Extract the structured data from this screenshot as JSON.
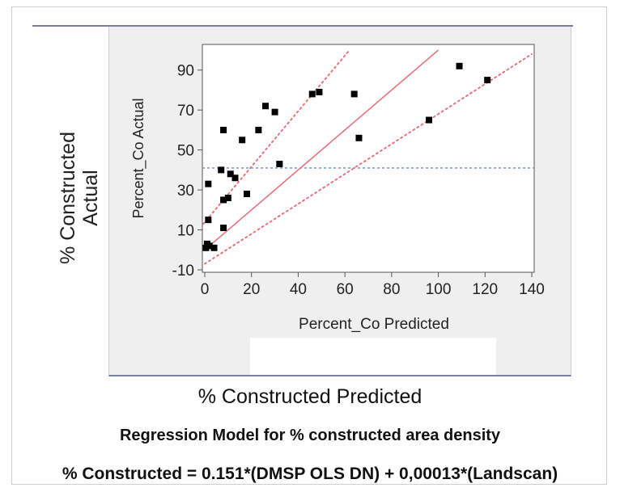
{
  "chart_data": {
    "type": "scatter",
    "title": "Regression Model for % constructed area density",
    "subtitle": "% Constructed = 0.151*(DMSP OLS DN) + 0,00013*(Landscan)",
    "outer_xlabel": "% Constructed Predicted",
    "outer_ylabel_line1": "% Constructed",
    "outer_ylabel_line2": "Actual",
    "xlabel": "Percent_Co Predicted",
    "ylabel": "Percent_Co Actual",
    "xlim": [
      0,
      140
    ],
    "ylim": [
      -10,
      100
    ],
    "xticks": [
      0,
      20,
      40,
      60,
      80,
      100,
      120,
      140
    ],
    "yticks": [
      -10,
      10,
      30,
      50,
      70,
      90
    ],
    "grid": false,
    "mean_line_y": 41,
    "fit_line": {
      "x": [
        0,
        100
      ],
      "y": [
        0,
        100
      ],
      "color": "#e8737f",
      "style": "solid"
    },
    "confidence_lines": [
      {
        "x": [
          -10,
          62
        ],
        "y": [
          0,
          100
        ],
        "color": "#e8737f",
        "style": "dotted"
      },
      {
        "x": [
          0,
          140
        ],
        "y": [
          -7,
          98
        ],
        "color": "#e8737f",
        "style": "dotted"
      }
    ],
    "mean_line_color": "#7f9be0",
    "point_color": "#000000",
    "points": [
      {
        "x": 0.5,
        "y": 1
      },
      {
        "x": 1,
        "y": 3
      },
      {
        "x": 2,
        "y": 2
      },
      {
        "x": 1.5,
        "y": 15
      },
      {
        "x": 1.5,
        "y": 33
      },
      {
        "x": 4,
        "y": 1
      },
      {
        "x": 8,
        "y": 11
      },
      {
        "x": 7,
        "y": 40
      },
      {
        "x": 8,
        "y": 25
      },
      {
        "x": 10,
        "y": 26
      },
      {
        "x": 11,
        "y": 38
      },
      {
        "x": 13,
        "y": 36
      },
      {
        "x": 8,
        "y": 60
      },
      {
        "x": 16,
        "y": 55
      },
      {
        "x": 18,
        "y": 28
      },
      {
        "x": 23,
        "y": 60
      },
      {
        "x": 26,
        "y": 72
      },
      {
        "x": 30,
        "y": 69
      },
      {
        "x": 32,
        "y": 43
      },
      {
        "x": 46,
        "y": 78
      },
      {
        "x": 49,
        "y": 79
      },
      {
        "x": 64,
        "y": 78
      },
      {
        "x": 66,
        "y": 56
      },
      {
        "x": 96,
        "y": 65
      },
      {
        "x": 109,
        "y": 92
      },
      {
        "x": 121,
        "y": 85
      }
    ]
  }
}
